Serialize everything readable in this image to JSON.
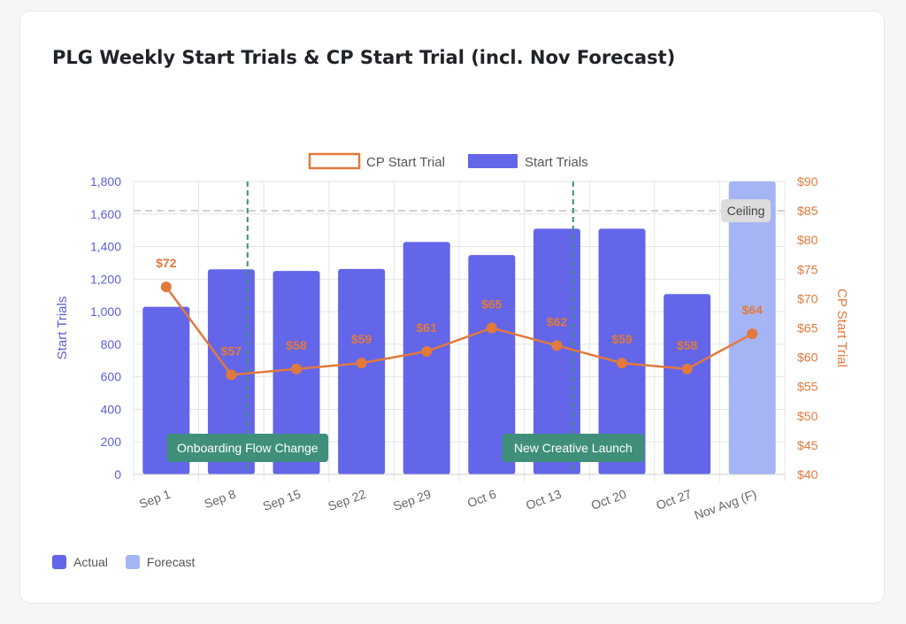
{
  "chart_data": {
    "type": "bar",
    "title": "PLG Weekly Start Trials & CP Start Trial (incl. Nov Forecast)",
    "categories": [
      "Sep 1",
      "Sep 8",
      "Sep 15",
      "Sep 22",
      "Sep 29",
      "Oct 6",
      "Oct 13",
      "Oct 20",
      "Oct 27",
      "Nov Avg (F)"
    ],
    "series": [
      {
        "name": "Start Trials",
        "kind": "bar",
        "axis": "left",
        "values": [
          1030,
          1260,
          1250,
          1262,
          1428,
          1348,
          1510,
          1510,
          1108,
          1800
        ],
        "forecast": [
          false,
          false,
          false,
          false,
          false,
          false,
          false,
          false,
          false,
          true
        ]
      },
      {
        "name": "CP Start Trial",
        "kind": "line",
        "axis": "right",
        "values": [
          72,
          57,
          58,
          59,
          61,
          65,
          62,
          59,
          58,
          64
        ],
        "labels": [
          "$72",
          "$57",
          "$58",
          "$59",
          "$61",
          "$65",
          "$62",
          "$59",
          "$58",
          "$64"
        ]
      }
    ],
    "ylabel": "Start Trials",
    "y2label": "CP Start Trial",
    "ylim": [
      0,
      1800
    ],
    "y2lim": [
      40,
      90
    ],
    "yticks": [
      "0",
      "200",
      "400",
      "600",
      "800",
      "1,000",
      "1,200",
      "1,400",
      "1,600",
      "1,800"
    ],
    "y2ticks": [
      "$40",
      "$45",
      "$50",
      "$55",
      "$60",
      "$65",
      "$70",
      "$75",
      "$80",
      "$85",
      "$90"
    ],
    "ceiling": {
      "label": "Ceiling",
      "value": 1620
    },
    "annotations": [
      {
        "label": "Onboarding Flow Change",
        "category": "Sep 8"
      },
      {
        "label": "New Creative Launch",
        "category": "Oct 13"
      }
    ],
    "legend": {
      "position": "top",
      "items": [
        "CP Start Trial",
        "Start Trials"
      ]
    },
    "bottom_legend": [
      {
        "label": "Actual",
        "color": "#6366e8"
      },
      {
        "label": "Forecast",
        "color": "#a5b4f5"
      }
    ],
    "colors": {
      "bar": "#6366e8",
      "forecast": "#a5b4f5",
      "line": "#e2793d",
      "axis_left": "#5b5fd9",
      "axis_right": "#e2793d",
      "annotation": "#3f8f7a",
      "ceiling": "#cccccc"
    },
    "grid": true
  }
}
